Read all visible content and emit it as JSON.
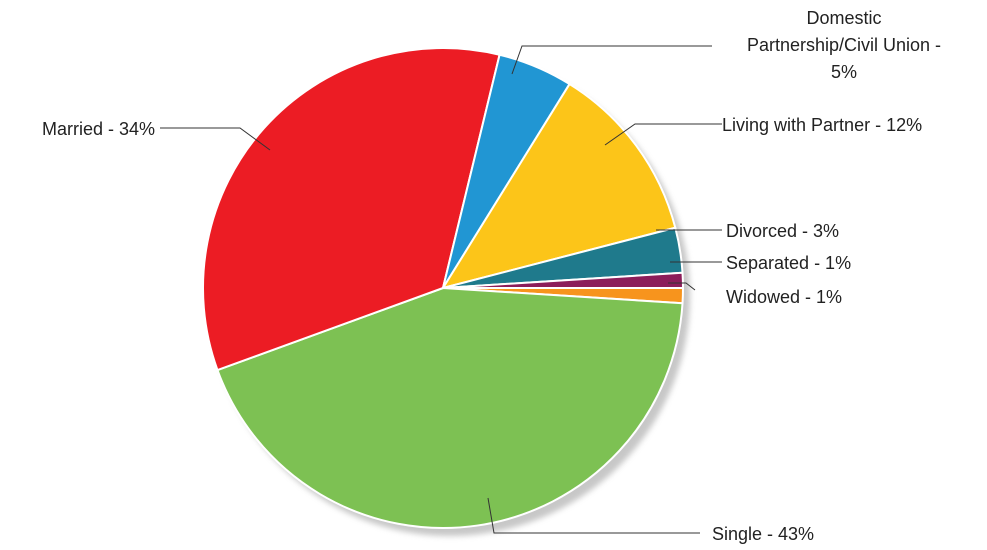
{
  "chart_data": {
    "type": "pie",
    "start_angle_deg": 0,
    "direction": "clockwise",
    "slices": [
      {
        "label": "Widowed - 1%",
        "value": 1,
        "color": "#F7941D"
      },
      {
        "label": "Single - 43%",
        "value": 43,
        "color": "#7DC153"
      },
      {
        "label": "Married - 34%",
        "value": 34,
        "color": "#EC1C24"
      },
      {
        "label": "Domestic Partnership/Civil Union - 5%",
        "label_lines": [
          "Domestic",
          "Partnership/Civil Union -",
          "5%"
        ],
        "value": 5,
        "color": "#2196D3"
      },
      {
        "label": "Living with Partner - 12%",
        "value": 12,
        "color": "#FCC519"
      },
      {
        "label": "Divorced - 3%",
        "value": 3,
        "color": "#1F7A8C"
      },
      {
        "label": "Separated - 1%",
        "value": 1,
        "color": "#8C1D5A"
      }
    ],
    "legend": "none"
  }
}
